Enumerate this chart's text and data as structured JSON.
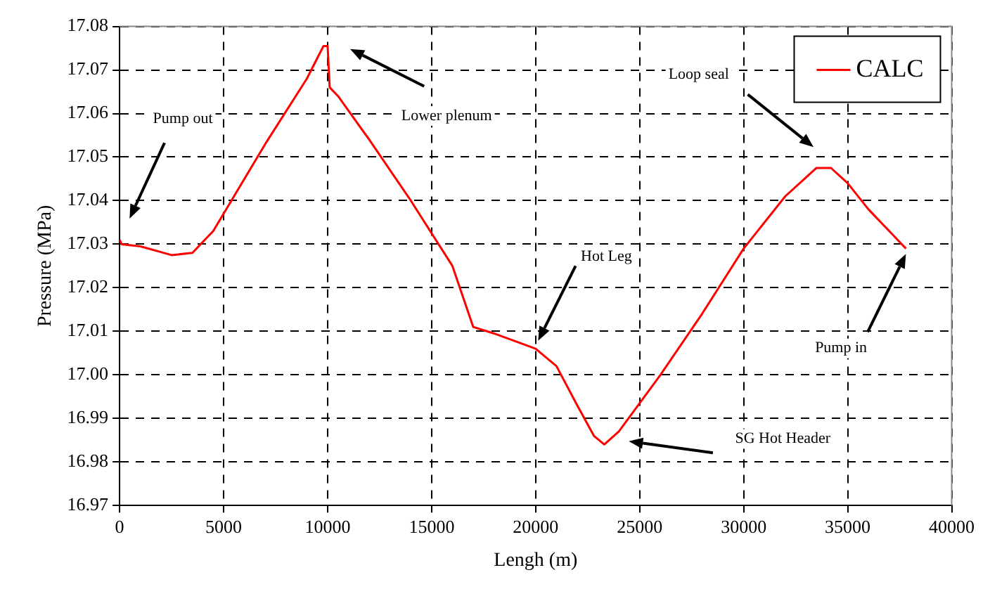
{
  "chart_data": {
    "type": "line",
    "xlabel": "Lengh (m)",
    "ylabel": "Pressure (MPa)",
    "xlim": [
      0,
      40000
    ],
    "xticks": [
      0,
      5000,
      10000,
      15000,
      20000,
      25000,
      30000,
      35000,
      40000
    ],
    "ylim": [
      16.97,
      17.08
    ],
    "yticks": [
      16.97,
      16.98,
      16.99,
      {
        "value": 17,
        "label": "17.00"
      },
      17.01,
      17.02,
      17.03,
      17.04,
      17.05,
      17.06,
      17.07,
      17.08
    ],
    "grid": true,
    "legend": "top right",
    "marker": "none",
    "line_style": "solid",
    "series": [
      {
        "name": "CALC",
        "color": "#ff0000",
        "x": [
          0,
          100,
          1000,
          2500,
          3500,
          4500,
          5000,
          7000,
          9000,
          9800,
          10000,
          10100,
          10500,
          12000,
          14000,
          16000,
          17000,
          18000,
          20000,
          21000,
          22000,
          22800,
          23300,
          24000,
          26000,
          28000,
          30000,
          32000,
          33500,
          34200,
          35000,
          36000,
          37800
        ],
        "values": [
          17.031,
          17.03,
          17.0295,
          17.0275,
          17.028,
          17.033,
          17.037,
          17.053,
          17.068,
          17.0755,
          17.0755,
          17.066,
          17.064,
          17.054,
          17.04,
          17.025,
          17.011,
          17.0095,
          17.006,
          17.002,
          16.993,
          16.986,
          16.984,
          16.987,
          17.0,
          17.014,
          17.029,
          17.041,
          17.0475,
          17.0475,
          17.044,
          17.038,
          17.029
        ]
      }
    ],
    "annotations": [
      "Pump out",
      "Lower plenum",
      "Hot Leg",
      "SG Hot Header",
      "Loop seal",
      "Pump in"
    ]
  }
}
